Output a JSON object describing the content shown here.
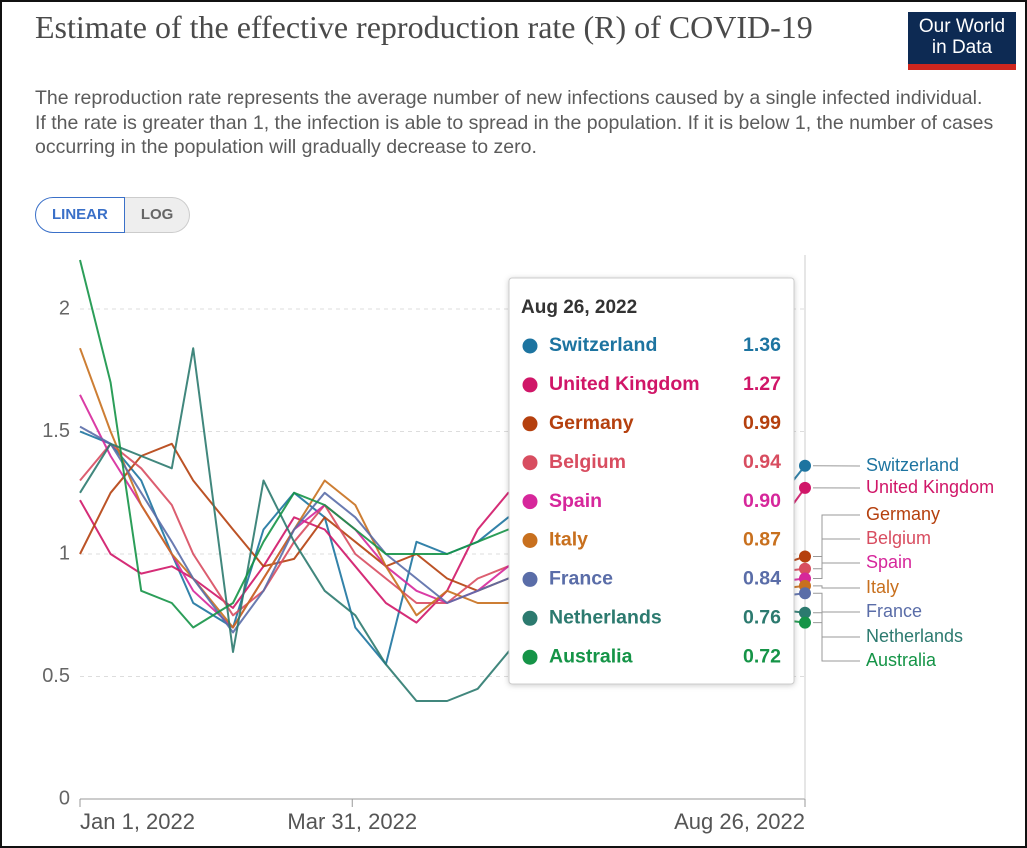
{
  "ui": {
    "logo": [
      "Our World",
      "in Data"
    ],
    "scale_buttons": [
      "LINEAR",
      "LOG"
    ]
  },
  "chart_data": {
    "type": "line",
    "title": "Estimate of the effective reproduction rate (R) of COVID-19",
    "subtitle": "The reproduction rate represents the average number of new infections caused by a single infected individual. If the rate is greater than 1, the infection is able to spread in the population. If it is below 1, the number of cases occurring in the population will gradually decrease to zero.",
    "log_scale": false,
    "grid": true,
    "x": [
      "Jan 1, 2022",
      "Jan 11, 2022",
      "Jan 21, 2022",
      "Jan 31, 2022",
      "Feb 7, 2022",
      "Feb 20, 2022",
      "Mar 2, 2022",
      "Mar 12, 2022",
      "Mar 22, 2022",
      "Apr 1, 2022",
      "Apr 11, 2022",
      "Apr 21, 2022",
      "May 1, 2022",
      "May 11, 2022",
      "May 21, 2022",
      "May 31, 2022",
      "Jun 10, 2022",
      "Jun 20, 2022",
      "Jun 30, 2022",
      "Jul 10, 2022",
      "Jul 20, 2022",
      "Jul 30, 2022",
      "Aug 9, 2022",
      "Aug 19, 2022",
      "Aug 26, 2022"
    ],
    "xlim": [
      "Jan 1, 2022",
      "Aug 26, 2022"
    ],
    "xticks": [
      "Jan 1, 2022",
      "Mar 31, 2022",
      "Aug 26, 2022"
    ],
    "ylim": [
      0,
      2.2
    ],
    "yticks": [
      0,
      0.5,
      1,
      1.5,
      2
    ],
    "series": [
      {
        "name": "Switzerland",
        "color": "#1d74a0",
        "values": [
          1.5,
          1.45,
          1.3,
          1.0,
          0.8,
          0.7,
          1.1,
          1.25,
          1.15,
          0.7,
          0.55,
          1.05,
          1.0,
          1.05,
          1.15,
          1.15,
          1.2,
          1.15,
          1.05,
          0.95,
          0.9,
          0.95,
          1.1,
          1.25,
          1.36
        ]
      },
      {
        "name": "United Kingdom",
        "color": "#d01668",
        "values": [
          1.22,
          1.0,
          0.92,
          0.95,
          0.9,
          0.78,
          0.95,
          1.15,
          1.1,
          0.95,
          0.8,
          0.72,
          0.85,
          1.1,
          1.25,
          1.2,
          1.15,
          1.1,
          1.0,
          0.85,
          0.8,
          0.85,
          1.0,
          1.15,
          1.27
        ]
      },
      {
        "name": "Germany",
        "color": "#b5400e",
        "values": [
          1.0,
          1.25,
          1.4,
          1.45,
          1.3,
          1.1,
          0.95,
          0.98,
          1.15,
          1.05,
          0.95,
          1.0,
          0.9,
          0.85,
          0.9,
          0.95,
          1.05,
          1.1,
          1.05,
          0.95,
          0.9,
          0.88,
          0.92,
          0.96,
          0.99
        ]
      },
      {
        "name": "Belgium",
        "color": "#d84d60",
        "values": [
          1.3,
          1.45,
          1.35,
          1.2,
          1.0,
          0.75,
          0.85,
          1.05,
          1.2,
          1.0,
          0.9,
          0.8,
          0.8,
          0.9,
          0.95,
          1.0,
          1.05,
          1.05,
          1.0,
          0.95,
          0.9,
          0.9,
          0.92,
          0.93,
          0.94
        ]
      },
      {
        "name": "Spain",
        "color": "#d6279b",
        "values": [
          1.65,
          1.4,
          1.2,
          1.0,
          0.85,
          0.7,
          0.9,
          1.1,
          1.2,
          1.1,
          0.95,
          0.85,
          0.8,
          0.85,
          0.95,
          1.0,
          1.05,
          1.0,
          0.95,
          0.9,
          0.85,
          0.85,
          0.88,
          0.89,
          0.9
        ]
      },
      {
        "name": "Italy",
        "color": "#c8701e",
        "values": [
          1.84,
          1.5,
          1.2,
          1.0,
          0.9,
          0.7,
          0.9,
          1.1,
          1.3,
          1.2,
          0.95,
          0.75,
          0.85,
          0.8,
          0.8,
          0.85,
          1.0,
          1.05,
          1.0,
          0.9,
          0.85,
          0.82,
          0.85,
          0.86,
          0.87
        ]
      },
      {
        "name": "France",
        "color": "#5a6da8",
        "values": [
          1.52,
          1.45,
          1.25,
          1.05,
          0.9,
          0.68,
          0.85,
          1.1,
          1.25,
          1.15,
          1.0,
          0.9,
          0.8,
          0.85,
          0.9,
          0.95,
          1.05,
          1.1,
          1.05,
          0.9,
          0.82,
          0.8,
          0.82,
          0.83,
          0.84
        ]
      },
      {
        "name": "Netherlands",
        "color": "#2c7a6f",
        "values": [
          1.25,
          1.45,
          1.4,
          1.35,
          1.84,
          0.6,
          1.3,
          1.05,
          0.85,
          0.75,
          0.55,
          0.4,
          0.4,
          0.45,
          0.6,
          0.75,
          0.95,
          1.0,
          0.95,
          0.9,
          0.85,
          0.8,
          0.78,
          0.77,
          0.76
        ]
      },
      {
        "name": "Australia",
        "color": "#159447",
        "values": [
          2.2,
          1.7,
          0.85,
          0.8,
          0.7,
          0.8,
          1.05,
          1.25,
          1.2,
          1.1,
          1.0,
          1.0,
          1.0,
          1.05,
          1.1,
          1.05,
          1.0,
          0.95,
          0.9,
          0.85,
          0.8,
          0.78,
          0.75,
          0.73,
          0.72
        ]
      }
    ],
    "tooltip_labels": [
      "1.36",
      "1.27",
      "0.99",
      "0.94",
      "0.90",
      "0.87",
      "0.84",
      "0.76",
      "0.72"
    ]
  }
}
